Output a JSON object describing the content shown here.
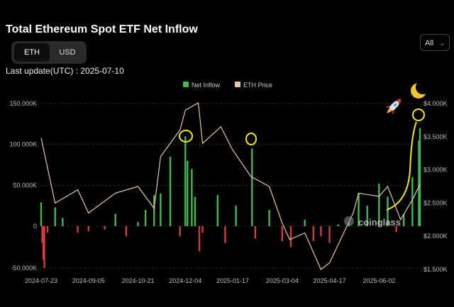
{
  "header": {
    "title": "Total Ethereum Spot ETF Net Inflow",
    "unit_options": [
      "ETH",
      "USD"
    ],
    "active_unit": "ETH",
    "range_selected": "All",
    "last_update": "Last update(UTC) : 2025-07-10"
  },
  "watermark": "coinglass",
  "colors": {
    "inflow_positive": "#3fb950",
    "inflow_negative": "#d63b3b",
    "price_line": "#e8c89a",
    "annotation": "#f5e71a",
    "background": "#000000"
  },
  "chart_data": {
    "type": "bar+line",
    "legend": [
      "Net Inflow",
      "ETH Price"
    ],
    "x_ticks": [
      "2024-07-23",
      "2024-09-05",
      "2024-10-21",
      "2024-12-04",
      "2025-01-17",
      "2025-03-04",
      "2025-04-17",
      "2025-06-02"
    ],
    "y_left": {
      "ticks": [
        "-50.000K",
        "0",
        "50.000K",
        "100.000K",
        "150.000K"
      ],
      "range": [
        -55000,
        150000
      ]
    },
    "y_right": {
      "ticks": [
        "$1.500K",
        "$2.000K",
        "$2.500K",
        "$3.000K",
        "$3.500K",
        "$4.000K"
      ],
      "range": [
        1500,
        4000
      ]
    },
    "x_range": [
      "2024-07-23",
      "2025-07-10"
    ],
    "net_inflow_series": {
      "name": "Net Inflow",
      "dates": [
        "2024-07-23",
        "2024-07-24",
        "2024-07-25",
        "2024-07-26",
        "2024-07-29",
        "2024-08-05",
        "2024-08-12",
        "2024-08-26",
        "2024-09-05",
        "2024-09-20",
        "2024-09-30",
        "2024-10-10",
        "2024-10-21",
        "2024-10-28",
        "2024-11-05",
        "2024-11-11",
        "2024-11-20",
        "2024-11-29",
        "2024-12-04",
        "2024-12-06",
        "2024-12-10",
        "2024-12-13",
        "2024-12-17",
        "2024-12-20",
        "2025-01-03",
        "2025-01-10",
        "2025-01-20",
        "2025-02-04",
        "2025-02-07",
        "2025-02-20",
        "2025-03-04",
        "2025-03-12",
        "2025-03-25",
        "2025-04-02",
        "2025-04-09",
        "2025-04-17",
        "2025-04-25",
        "2025-05-05",
        "2025-05-14",
        "2025-05-22",
        "2025-06-02",
        "2025-06-10",
        "2025-06-18",
        "2025-06-25",
        "2025-07-03",
        "2025-07-09",
        "2025-07-10"
      ],
      "values": [
        29000,
        -20000,
        -40000,
        -50000,
        -8000,
        23000,
        10000,
        -8000,
        -6000,
        -4000,
        15000,
        -12000,
        5000,
        20000,
        38000,
        40000,
        85000,
        -12000,
        110000,
        80000,
        70000,
        36000,
        -30000,
        -8000,
        38000,
        -20000,
        25000,
        95000,
        -15000,
        20000,
        -18000,
        -25000,
        8000,
        -18000,
        -12000,
        -20000,
        2000,
        5000,
        40000,
        25000,
        52000,
        36000,
        -7000,
        15000,
        60000,
        105000,
        120000
      ]
    },
    "eth_price_series": {
      "name": "ETH Price",
      "dates": [
        "2024-07-23",
        "2024-08-05",
        "2024-08-26",
        "2024-09-05",
        "2024-09-30",
        "2024-10-21",
        "2024-11-05",
        "2024-11-11",
        "2024-11-29",
        "2024-12-04",
        "2024-12-16",
        "2024-12-20",
        "2025-01-06",
        "2025-01-17",
        "2025-02-03",
        "2025-02-20",
        "2025-03-04",
        "2025-03-11",
        "2025-03-25",
        "2025-04-09",
        "2025-04-17",
        "2025-05-09",
        "2025-05-14",
        "2025-06-02",
        "2025-06-10",
        "2025-06-22",
        "2025-07-03",
        "2025-07-10"
      ],
      "values": [
        3480,
        2500,
        2700,
        2350,
        2650,
        2750,
        2420,
        3200,
        3600,
        3900,
        4010,
        3400,
        3650,
        3300,
        2900,
        2750,
        2200,
        1950,
        2050,
        1500,
        1600,
        2350,
        2650,
        2600,
        2750,
        2250,
        2550,
        2780
      ]
    }
  }
}
